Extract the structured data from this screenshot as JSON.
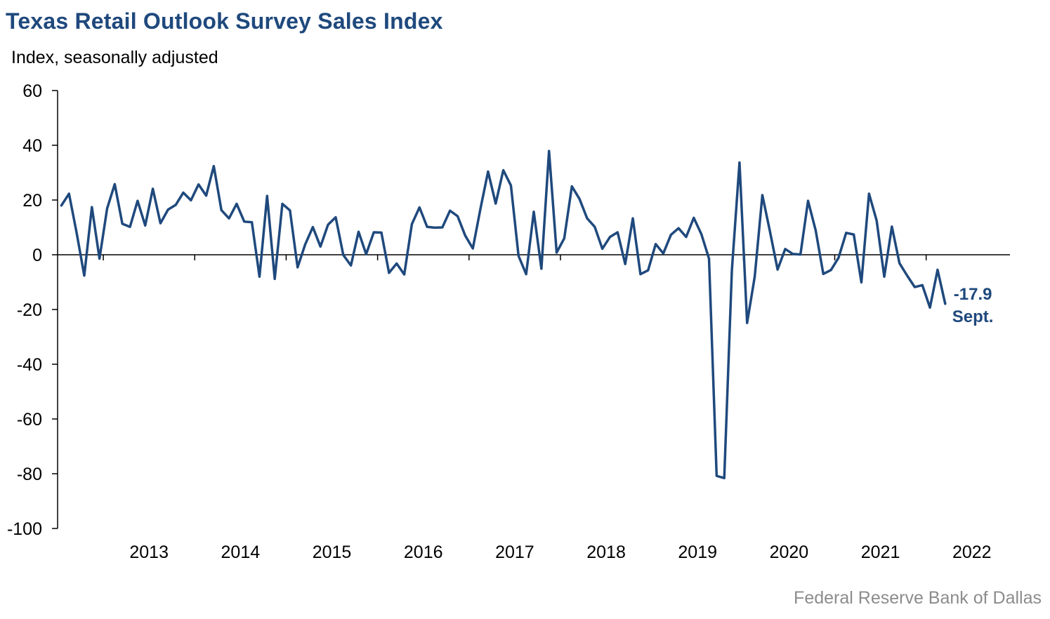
{
  "header": {
    "title": "Texas Retail Outlook Survey Sales Index",
    "subtitle": "Index, seasonally adjusted"
  },
  "footer": {
    "source": "Federal Reserve Bank of Dallas"
  },
  "chart_data": {
    "type": "line",
    "title": "Texas Retail Outlook Survey Sales Index",
    "ylabel": "Index, seasonally adjusted",
    "xlabel": "",
    "ylim": [
      -100,
      60
    ],
    "yticks": [
      60,
      40,
      20,
      0,
      -20,
      -40,
      -60,
      -80,
      -100
    ],
    "xtick_labels": [
      "2013",
      "2014",
      "2015",
      "2016",
      "2017",
      "2018",
      "2019",
      "2020",
      "2021",
      "2022"
    ],
    "x_start": "2012-07",
    "x_end": "2022-09",
    "grid": false,
    "legend": "none",
    "line_color": "#1f497d",
    "annotation": {
      "value": "-17.9",
      "label": "Sept."
    },
    "series": [
      {
        "values": [
          18.0,
          22.3,
          8.0,
          -7.6,
          17.4,
          -1.4,
          16.9,
          25.8,
          11.3,
          10.2,
          19.7,
          10.7,
          24.1,
          11.5,
          16.5,
          18.2,
          22.7,
          19.9,
          25.7,
          21.6,
          32.4,
          16.3,
          13.3,
          18.6,
          12.1,
          11.9,
          -8.0,
          21.5,
          -8.8,
          18.6,
          16.2,
          -4.6,
          3.8,
          10.1,
          3.0,
          11.0,
          13.7,
          -0.1,
          -3.9,
          8.4,
          0.2,
          8.2,
          8.1,
          -6.6,
          -3.2,
          -7.2,
          11.2,
          17.3,
          10.2,
          9.9,
          10.0,
          16.1,
          14.1,
          7.0,
          2.3,
          16.8,
          30.4,
          18.7,
          30.9,
          25.3,
          -0.4,
          -7.1,
          15.7,
          -5.1,
          37.9,
          0.8,
          6.0,
          25.0,
          20.4,
          13.3,
          10.2,
          2.2,
          6.5,
          8.2,
          -3.4,
          13.3,
          -7.1,
          -5.7,
          3.9,
          0.5,
          7.3,
          9.7,
          6.5,
          13.5,
          7.5,
          -1.4,
          -80.8,
          -81.6,
          -5.7,
          33.7,
          -24.9,
          -8.0,
          21.8,
          8.5,
          -5.4,
          2.1,
          0.3,
          0.1,
          19.7,
          8.9,
          -7.0,
          -5.6,
          -1.1,
          8.0,
          7.4,
          -10.1,
          22.3,
          12.5,
          -8.0,
          10.3,
          -3.1,
          -7.6,
          -11.8,
          -11.1,
          -19.3,
          -5.5,
          -17.9
        ]
      }
    ]
  }
}
